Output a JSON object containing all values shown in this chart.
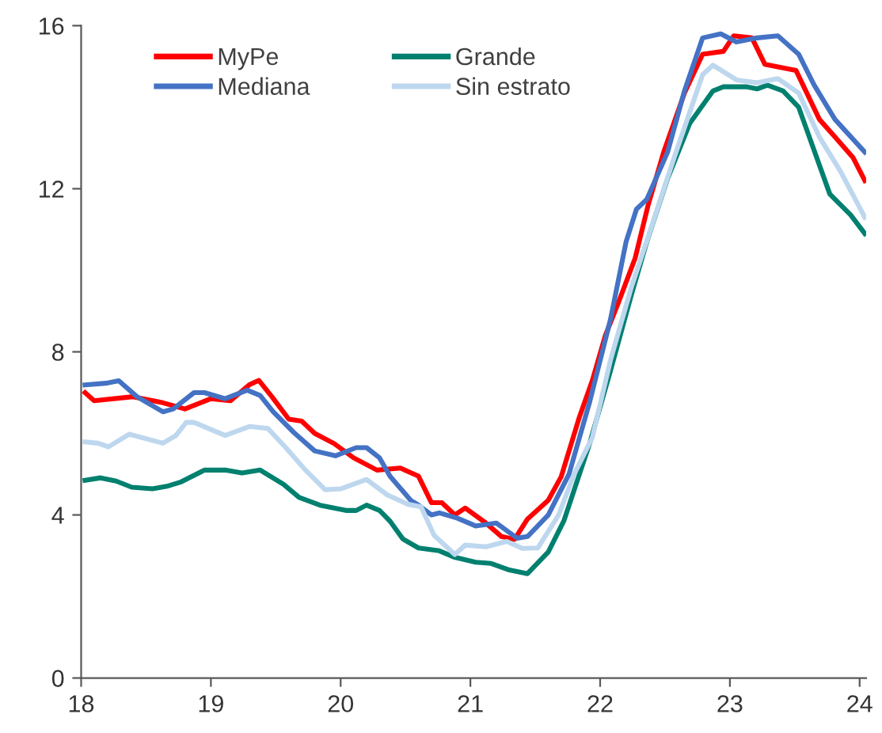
{
  "chart_data": {
    "type": "line",
    "xlim": [
      18,
      24.05
    ],
    "xticks": [
      18,
      19,
      20,
      21,
      22,
      23,
      24
    ],
    "ylim": [
      0,
      16
    ],
    "yticks": [
      0,
      4,
      8,
      12,
      16
    ],
    "grid": false,
    "legend": "top",
    "marker": "none",
    "line_style": "solid",
    "series": [
      {
        "name": "MyPe",
        "color": "#ff0000",
        "x": [
          18.03,
          18.1,
          18.4,
          18.63,
          18.8,
          19.0,
          19.15,
          19.3,
          19.37,
          19.47,
          19.6,
          19.7,
          19.8,
          19.95,
          20.1,
          20.28,
          20.46,
          20.6,
          20.7,
          20.78,
          20.88,
          20.96,
          21.12,
          21.24,
          21.34,
          21.44,
          21.6,
          21.7,
          21.84,
          21.94,
          22.04,
          22.14,
          22.27,
          22.37,
          22.49,
          22.65,
          22.79,
          22.95,
          23.03,
          23.17,
          23.27,
          23.51,
          23.69,
          23.81,
          23.95,
          24.04
        ],
        "values": [
          7.0,
          6.8,
          6.9,
          6.75,
          6.6,
          6.85,
          6.8,
          7.2,
          7.3,
          6.9,
          6.35,
          6.3,
          6.0,
          5.75,
          5.4,
          5.1,
          5.15,
          4.95,
          4.3,
          4.3,
          4.0,
          4.17,
          3.8,
          3.47,
          3.4,
          3.9,
          4.36,
          4.94,
          6.4,
          7.3,
          8.4,
          9.2,
          10.3,
          11.6,
          12.9,
          14.35,
          15.3,
          15.37,
          15.75,
          15.7,
          15.05,
          14.9,
          13.7,
          13.27,
          12.76,
          12.2
        ]
      },
      {
        "name": "Mediana",
        "color": "#4472c4",
        "x": [
          18.03,
          18.19,
          18.29,
          18.43,
          18.63,
          18.71,
          18.87,
          18.95,
          19.11,
          19.28,
          19.38,
          19.48,
          19.64,
          19.8,
          19.96,
          20.12,
          20.2,
          20.3,
          20.38,
          20.54,
          20.6,
          20.7,
          20.76,
          20.9,
          21.04,
          21.2,
          21.36,
          21.44,
          21.6,
          21.76,
          21.92,
          22.08,
          22.2,
          22.28,
          22.36,
          22.52,
          22.65,
          22.79,
          22.93,
          23.05,
          23.21,
          23.37,
          23.53,
          23.65,
          23.81,
          24.04
        ],
        "values": [
          7.19,
          7.23,
          7.29,
          6.9,
          6.53,
          6.6,
          7.0,
          7.0,
          6.85,
          7.06,
          6.93,
          6.53,
          6.02,
          5.57,
          5.45,
          5.65,
          5.65,
          5.4,
          4.95,
          4.36,
          4.24,
          4.0,
          4.05,
          3.92,
          3.73,
          3.8,
          3.43,
          3.47,
          4.0,
          5.0,
          6.78,
          8.8,
          10.7,
          11.5,
          11.74,
          12.9,
          14.4,
          15.7,
          15.8,
          15.6,
          15.7,
          15.75,
          15.3,
          14.54,
          13.7,
          12.9
        ]
      },
      {
        "name": "Grande",
        "color": "#00806f",
        "x": [
          18.03,
          18.15,
          18.27,
          18.39,
          18.55,
          18.67,
          18.77,
          18.95,
          19.11,
          19.24,
          19.38,
          19.56,
          19.68,
          19.84,
          20.04,
          20.12,
          20.2,
          20.3,
          20.38,
          20.48,
          20.6,
          20.76,
          20.88,
          21.04,
          21.16,
          21.3,
          21.44,
          21.6,
          21.72,
          21.92,
          22.08,
          22.24,
          22.36,
          22.52,
          22.69,
          22.87,
          22.95,
          23.13,
          23.21,
          23.29,
          23.41,
          23.53,
          23.77,
          23.93,
          24.04
        ],
        "values": [
          4.85,
          4.91,
          4.83,
          4.68,
          4.64,
          4.71,
          4.81,
          5.1,
          5.1,
          5.03,
          5.1,
          4.75,
          4.43,
          4.24,
          4.11,
          4.11,
          4.24,
          4.11,
          3.85,
          3.41,
          3.19,
          3.12,
          2.96,
          2.84,
          2.81,
          2.65,
          2.56,
          3.09,
          3.85,
          5.76,
          7.54,
          9.39,
          10.7,
          12.25,
          13.6,
          14.4,
          14.5,
          14.5,
          14.45,
          14.54,
          14.4,
          14.0,
          11.87,
          11.36,
          10.9
        ]
      },
      {
        "name": "Sin estrato",
        "color": "#bdd7ee",
        "x": [
          18.03,
          18.13,
          18.21,
          18.37,
          18.63,
          18.73,
          18.81,
          18.87,
          19.11,
          19.3,
          19.44,
          19.58,
          19.72,
          19.88,
          20.0,
          20.2,
          20.36,
          20.52,
          20.62,
          20.72,
          20.88,
          20.96,
          21.12,
          21.28,
          21.4,
          21.52,
          21.68,
          21.8,
          21.94,
          22.08,
          22.24,
          22.4,
          22.57,
          22.79,
          22.87,
          23.05,
          23.21,
          23.37,
          23.53,
          23.69,
          23.85,
          24.04
        ],
        "values": [
          5.79,
          5.76,
          5.67,
          5.98,
          5.76,
          5.95,
          6.27,
          6.27,
          5.95,
          6.17,
          6.12,
          5.64,
          5.13,
          4.62,
          4.64,
          4.87,
          4.49,
          4.26,
          4.2,
          3.5,
          3.03,
          3.26,
          3.22,
          3.35,
          3.18,
          3.19,
          4.0,
          5.0,
          5.9,
          7.8,
          9.58,
          11.1,
          12.76,
          14.8,
          15.03,
          14.67,
          14.6,
          14.7,
          14.35,
          13.27,
          12.44,
          11.3
        ]
      }
    ]
  }
}
